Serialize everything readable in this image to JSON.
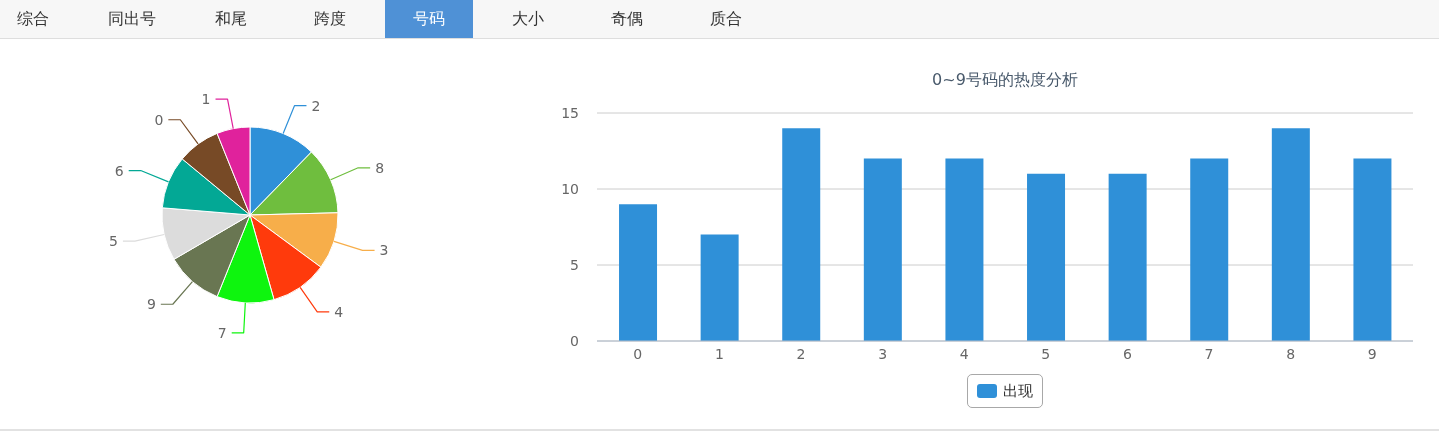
{
  "chart_data": [
    {
      "type": "other",
      "annotations": [
        "综合",
        "同出号",
        "和尾",
        "跨度",
        "号码",
        "大小",
        "奇偶",
        "质合"
      ]
    },
    {
      "type": "pie",
      "categories": [
        "2",
        "8",
        "3",
        "4",
        "7",
        "9",
        "5",
        "6",
        "0",
        "1"
      ],
      "values": [
        12.3,
        12.3,
        10.5,
        10.5,
        10.5,
        10.5,
        9.7,
        9.7,
        7.9,
        6.1
      ],
      "colors": [
        "#2f90d8",
        "#6fbe3e",
        "#f7ae4a",
        "#ff3a0c",
        "#0ef50e",
        "#697652",
        "#dcdcdc",
        "#03a895",
        "#774a26",
        "#e0229c"
      ]
    },
    {
      "type": "bar",
      "title": "0~9号码的热度分析",
      "categories": [
        "0",
        "1",
        "2",
        "3",
        "4",
        "5",
        "6",
        "7",
        "8",
        "9"
      ],
      "series": [
        {
          "name": "出现",
          "color": "#2f90d8",
          "values": [
            9,
            7,
            14,
            12,
            12,
            11,
            11,
            12,
            14,
            12
          ]
        }
      ],
      "ylim": [
        0,
        15
      ],
      "yticks": [
        0,
        5,
        10,
        15
      ],
      "grid": "y",
      "legend": "bottom"
    }
  ]
}
